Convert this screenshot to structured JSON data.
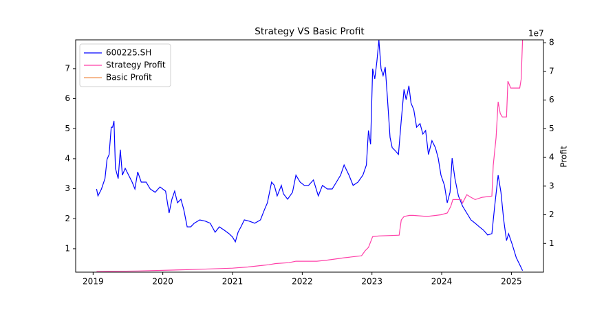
{
  "chart_data": {
    "type": "line",
    "title": "Strategy VS Basic Profit",
    "y2label": "Profit",
    "y2offset": "1e7",
    "xlim": [
      2018.75,
      2025.46
    ],
    "xticks": [
      2019,
      2020,
      2021,
      2022,
      2023,
      2024,
      2025
    ],
    "ylim": [
      0.22,
      7.96
    ],
    "yticks": [
      1,
      2,
      3,
      4,
      5,
      6,
      7
    ],
    "y2lim": [
      0,
      8.1
    ],
    "y2ticks": [
      1,
      2,
      3,
      4,
      5,
      6,
      7,
      8
    ],
    "legend": "upper-left",
    "series": [
      {
        "name": "600225.SH",
        "color": "#0000ff",
        "axis": "y",
        "x": [
          2019.05,
          2019.07,
          2019.12,
          2019.17,
          2019.2,
          2019.23,
          2019.26,
          2019.28,
          2019.3,
          2019.32,
          2019.36,
          2019.39,
          2019.42,
          2019.46,
          2019.51,
          2019.56,
          2019.6,
          2019.64,
          2019.69,
          2019.76,
          2019.82,
          2019.89,
          2019.96,
          2020.04,
          2020.09,
          2020.13,
          2020.17,
          2020.21,
          2020.26,
          2020.3,
          2020.35,
          2020.4,
          2020.45,
          2020.53,
          2020.61,
          2020.68,
          2020.75,
          2020.81,
          2020.88,
          2020.95,
          2021.0,
          2021.04,
          2021.08,
          2021.12,
          2021.17,
          2021.24,
          2021.32,
          2021.4,
          2021.46,
          2021.5,
          2021.56,
          2021.6,
          2021.64,
          2021.7,
          2021.73,
          2021.79,
          2021.86,
          2021.91,
          2021.97,
          2022.03,
          2022.09,
          2022.16,
          2022.23,
          2022.29,
          2022.36,
          2022.43,
          2022.49,
          2022.55,
          2022.6,
          2022.67,
          2022.73,
          2022.8,
          2022.87,
          2022.92,
          2022.95,
          2022.98,
          2023.01,
          2023.04,
          2023.07,
          2023.1,
          2023.13,
          2023.16,
          2023.19,
          2023.22,
          2023.26,
          2023.29,
          2023.34,
          2023.38,
          2023.42,
          2023.46,
          2023.49,
          2023.53,
          2023.56,
          2023.6,
          2023.64,
          2023.69,
          2023.73,
          2023.77,
          2023.81,
          2023.86,
          2023.91,
          2023.95,
          2023.99,
          2024.04,
          2024.08,
          2024.12,
          2024.15,
          2024.19,
          2024.24,
          2024.3,
          2024.36,
          2024.42,
          2024.48,
          2024.54,
          2024.6,
          2024.66,
          2024.72,
          2024.76,
          2024.81,
          2024.85,
          2024.89,
          2024.93,
          2024.96,
          2025.01,
          2025.07,
          2025.12,
          2025.16
        ],
        "values": [
          2.99,
          2.76,
          2.99,
          3.34,
          3.98,
          4.14,
          5.05,
          5.05,
          5.26,
          3.68,
          3.34,
          4.3,
          3.45,
          3.68,
          3.45,
          3.22,
          2.99,
          3.56,
          3.22,
          3.22,
          2.99,
          2.88,
          3.06,
          2.92,
          2.19,
          2.65,
          2.92,
          2.53,
          2.65,
          2.31,
          1.73,
          1.73,
          1.85,
          1.96,
          1.92,
          1.85,
          1.55,
          1.73,
          1.62,
          1.5,
          1.39,
          1.23,
          1.55,
          1.73,
          1.96,
          1.92,
          1.85,
          1.96,
          2.31,
          2.53,
          3.22,
          3.11,
          2.76,
          3.11,
          2.83,
          2.65,
          2.88,
          3.45,
          3.22,
          3.11,
          3.11,
          3.29,
          2.76,
          3.11,
          2.99,
          2.99,
          3.22,
          3.45,
          3.79,
          3.45,
          3.11,
          3.22,
          3.45,
          3.79,
          4.94,
          4.48,
          7.0,
          6.66,
          7.23,
          7.95,
          7.0,
          6.77,
          7.05,
          6.08,
          4.71,
          4.37,
          4.25,
          4.14,
          5.28,
          6.31,
          5.97,
          6.43,
          5.85,
          5.63,
          5.05,
          5.17,
          4.82,
          4.94,
          4.14,
          4.6,
          4.37,
          4.02,
          3.45,
          3.11,
          2.53,
          2.88,
          4.02,
          3.34,
          2.76,
          2.42,
          2.19,
          1.96,
          1.85,
          1.73,
          1.62,
          1.46,
          1.5,
          2.42,
          3.45,
          2.88,
          1.96,
          1.27,
          1.5,
          1.16,
          0.7,
          0.47,
          0.27
        ]
      },
      {
        "name": "Strategy Profit",
        "color": "#ff3fa8",
        "axis": "y2",
        "x": [
          2019.05,
          2019.64,
          2020.43,
          2021.0,
          2021.22,
          2021.52,
          2021.62,
          2021.81,
          2021.91,
          2022.21,
          2022.36,
          2022.6,
          2022.85,
          2022.9,
          2022.95,
          2023.01,
          2023.1,
          2023.39,
          2023.42,
          2023.46,
          2023.54,
          2023.59,
          2023.79,
          2023.99,
          2024.08,
          2024.13,
          2024.16,
          2024.28,
          2024.3,
          2024.36,
          2024.42,
          2024.48,
          2024.58,
          2024.72,
          2024.74,
          2024.78,
          2024.81,
          2024.84,
          2024.87,
          2024.93,
          2024.95,
          2024.99,
          2025.12,
          2025.14,
          2025.16
        ],
        "values": [
          0.02,
          0.04,
          0.09,
          0.14,
          0.18,
          0.26,
          0.3,
          0.33,
          0.38,
          0.38,
          0.42,
          0.5,
          0.57,
          0.74,
          0.86,
          1.24,
          1.26,
          1.29,
          1.82,
          1.94,
          1.98,
          1.98,
          1.94,
          2.0,
          2.06,
          2.29,
          2.53,
          2.53,
          2.41,
          2.7,
          2.61,
          2.53,
          2.61,
          2.65,
          3.73,
          4.69,
          5.94,
          5.53,
          5.41,
          5.41,
          6.66,
          6.42,
          6.42,
          6.73,
          8.1
        ]
      },
      {
        "name": "Basic Profit",
        "color": "#f0904e",
        "axis": "y2",
        "x": [],
        "values": []
      }
    ]
  }
}
